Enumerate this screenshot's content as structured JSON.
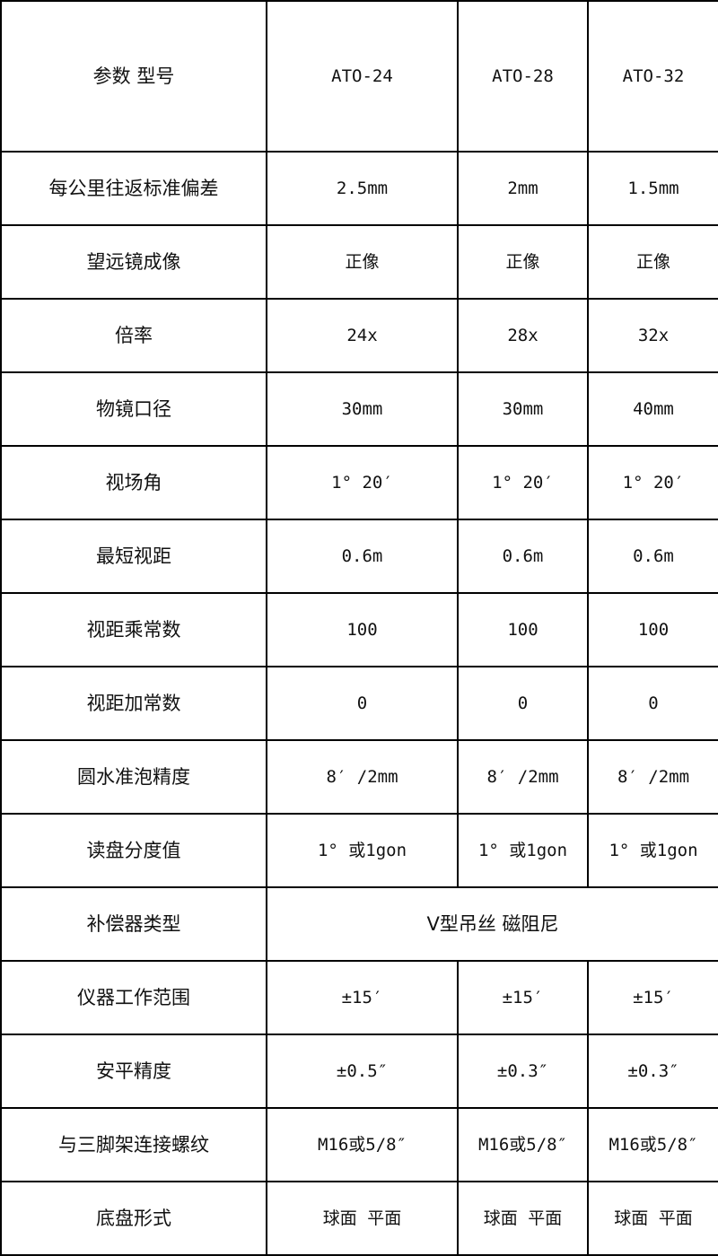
{
  "header": {
    "param_label": "参数 型号",
    "models": [
      "ATO-24",
      "ATO-28",
      "ATO-32"
    ]
  },
  "rows": [
    {
      "label": "每公里往返标准偏差",
      "values": [
        "2.5mm",
        "2mm",
        "1.5mm"
      ]
    },
    {
      "label": "望远镜成像",
      "values": [
        "正像",
        "正像",
        "正像"
      ]
    },
    {
      "label": "倍率",
      "values": [
        "24x",
        "28x",
        "32x"
      ]
    },
    {
      "label": "物镜口径",
      "values": [
        "30mm",
        "30mm",
        "40mm"
      ]
    },
    {
      "label": "视场角",
      "values": [
        "1° 20′",
        "1° 20′",
        "1° 20′"
      ]
    },
    {
      "label": "最短视距",
      "values": [
        "0.6m",
        "0.6m",
        "0.6m"
      ]
    },
    {
      "label": "视距乘常数",
      "values": [
        "100",
        "100",
        "100"
      ]
    },
    {
      "label": "视距加常数",
      "values": [
        "0",
        "0",
        "0"
      ]
    },
    {
      "label": "圆水准泡精度",
      "values": [
        "8′ /2mm",
        "8′ /2mm",
        "8′ /2mm"
      ]
    },
    {
      "label": "读盘分度值",
      "values": [
        "1° 或1gon",
        "1° 或1gon",
        "1° 或1gon"
      ]
    },
    {
      "label": "补偿器类型",
      "merged_value": "V型吊丝 磁阻尼"
    },
    {
      "label": "仪器工作范围",
      "values": [
        "±15′",
        "±15′",
        "±15′"
      ]
    },
    {
      "label": "安平精度",
      "values": [
        "±0.5″",
        "±0.3″",
        "±0.3″"
      ]
    },
    {
      "label": "与三脚架连接螺纹",
      "values": [
        "M16或5/8″",
        "M16或5/8″",
        "M16或5/8″"
      ]
    },
    {
      "label": "底盘形式",
      "values": [
        "球面 平面",
        "球面 平面",
        "球面 平面"
      ]
    }
  ]
}
